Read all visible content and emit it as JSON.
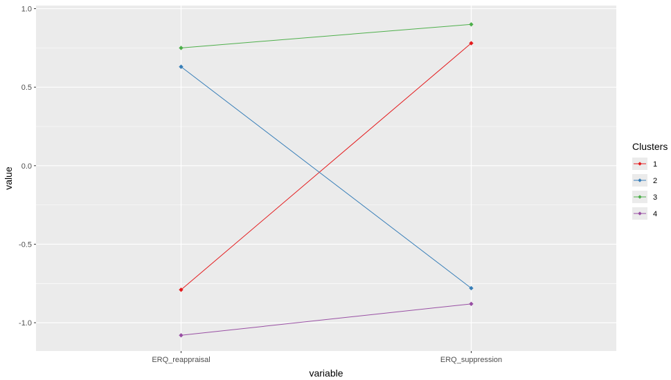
{
  "chart_data": {
    "type": "line",
    "categories": [
      "ERQ_reappraisal",
      "ERQ_suppression"
    ],
    "xlabel": "variable",
    "ylabel": "value",
    "ylim": [
      -1.18,
      1.02
    ],
    "yticks": [
      1.0,
      0.5,
      0.0,
      -0.5,
      -1.0
    ],
    "ytick_labels": [
      "1.0",
      "0.5",
      "0.0",
      "-0.5",
      "-1.0"
    ],
    "grid": true,
    "legend": {
      "title": "Clusters",
      "placement": "right"
    },
    "series": [
      {
        "name": "1",
        "color": "#e41a1c",
        "values": [
          -0.79,
          0.78
        ]
      },
      {
        "name": "2",
        "color": "#377eb8",
        "values": [
          0.63,
          -0.78
        ]
      },
      {
        "name": "3",
        "color": "#4daf4a",
        "values": [
          0.75,
          0.9
        ]
      },
      {
        "name": "4",
        "color": "#984ea3",
        "values": [
          -1.08,
          -0.88
        ]
      }
    ]
  }
}
